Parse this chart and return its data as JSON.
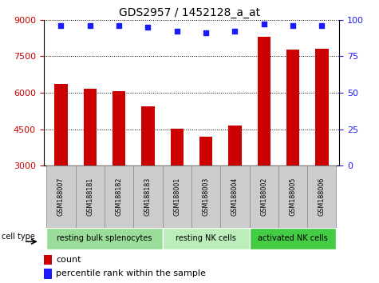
{
  "title": "GDS2957 / 1452128_a_at",
  "samples": [
    "GSM188007",
    "GSM188181",
    "GSM188182",
    "GSM188183",
    "GSM188001",
    "GSM188003",
    "GSM188004",
    "GSM188002",
    "GSM188005",
    "GSM188006"
  ],
  "counts": [
    6350,
    6150,
    6080,
    5450,
    4530,
    4180,
    4650,
    8300,
    7780,
    7800
  ],
  "percentiles": [
    96,
    96,
    96,
    95,
    92,
    91,
    92,
    97,
    96,
    96
  ],
  "ylim_left": [
    3000,
    9000
  ],
  "ylim_right": [
    0,
    100
  ],
  "yticks_left": [
    3000,
    4500,
    6000,
    7500,
    9000
  ],
  "yticks_right": [
    0,
    25,
    50,
    75,
    100
  ],
  "bar_color": "#cc0000",
  "dot_color": "#1a1aff",
  "sample_bg_color": "#cccccc",
  "cell_groups": [
    {
      "label": "resting bulk splenocytes",
      "start": 0,
      "end": 4,
      "color": "#99dd99"
    },
    {
      "label": "resting NK cells",
      "start": 4,
      "end": 7,
      "color": "#bbeebb"
    },
    {
      "label": "activated NK cells",
      "start": 7,
      "end": 10,
      "color": "#44cc44"
    }
  ],
  "cell_type_label": "cell type",
  "legend_count_label": "count",
  "legend_pct_label": "percentile rank within the sample",
  "title_fontsize": 10,
  "left_tick_color": "#cc0000",
  "right_tick_color": "#1a1aff",
  "grid_linestyle": ":",
  "bar_width": 0.45
}
